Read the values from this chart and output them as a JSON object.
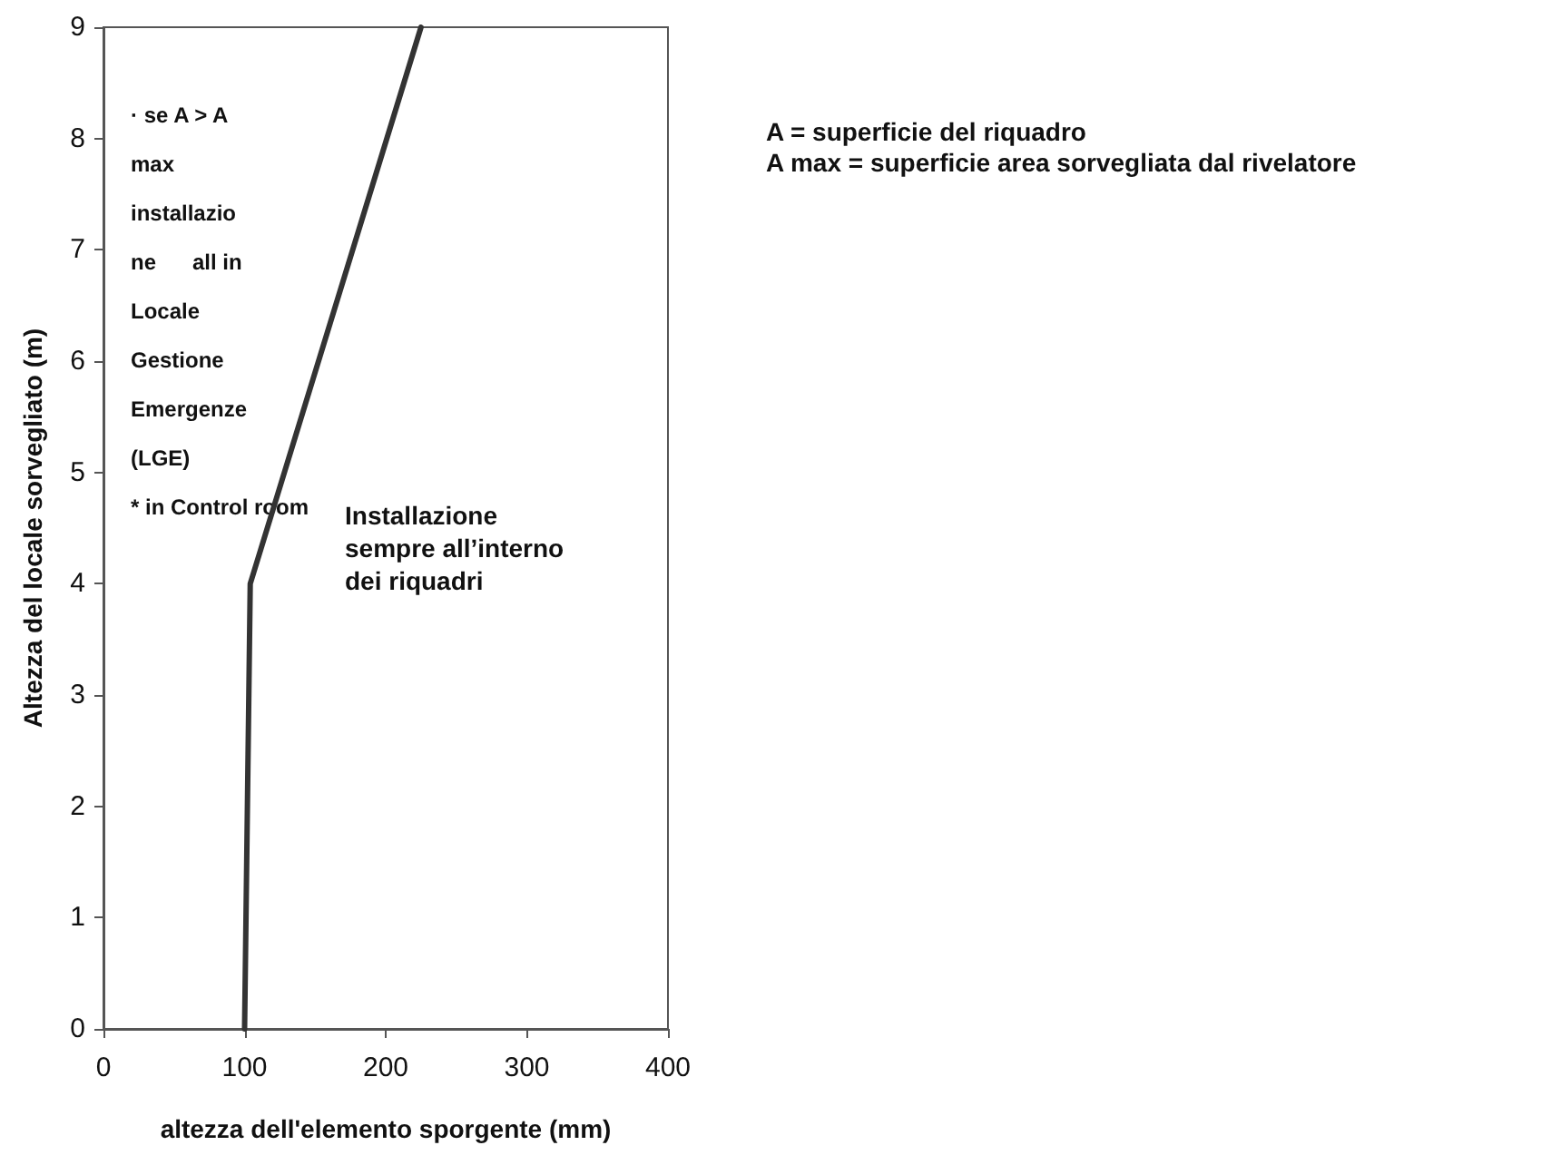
{
  "chart_data": {
    "type": "line",
    "xlabel": "altezza dell'elemento sporgente (mm)",
    "ylabel": "Altezza del locale sorvegliato (m)",
    "x": [
      100,
      104,
      225
    ],
    "series": [
      {
        "color": "#333333",
        "values": [
          0,
          4,
          9
        ]
      }
    ],
    "xlim": [
      0,
      400
    ],
    "xticks": [
      0,
      100,
      200,
      300,
      400
    ],
    "ylim": [
      0,
      9
    ],
    "yticks": [
      0,
      1,
      2,
      3,
      4,
      5,
      6,
      7,
      8,
      9
    ],
    "grid": false,
    "marker": "none",
    "line_style": "solid",
    "annotations": [
      "· se A > A\nmax\ninstallazio\nne      all in\nLocale\nGestione\nEmergenze\n(LGE)\n* in Control room",
      "Installazione\nsempre all’interno\ndei riquadri",
      "A = superficie del riquadro\nA max = superficie area sorvegliata dal rivelatore"
    ]
  }
}
